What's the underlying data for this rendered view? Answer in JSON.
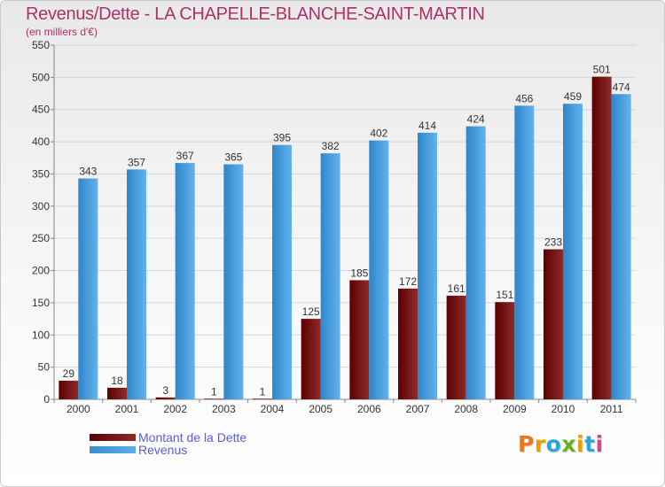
{
  "title": "Revenus/Dette - LA CHAPELLE-BLANCHE-SAINT-MARTIN",
  "subtitle": "(en milliers d'€)",
  "logo": {
    "text": "Proxiti",
    "colors": [
      "#e87722",
      "#e8a000",
      "#27a8d8",
      "#6ab023",
      "#e8a000",
      "#27a8d8",
      "#d04a8a"
    ]
  },
  "colors": {
    "debt_dark": "#5c0000",
    "debt_light": "#8e2b2b",
    "revenue_dark": "#2f86c8",
    "revenue_light": "#62b3ee",
    "title": "#b0306a",
    "legend": "#5a5ad8"
  },
  "legend": [
    {
      "label": "Montant de la Dette",
      "series": "debt"
    },
    {
      "label": "Revenus",
      "series": "revenue"
    }
  ],
  "chart_data": {
    "type": "bar",
    "title": "Revenus/Dette - LA CHAPELLE-BLANCHE-SAINT-MARTIN",
    "subtitle": "(en milliers d'€)",
    "categories": [
      "2000",
      "2001",
      "2002",
      "2003",
      "2004",
      "2005",
      "2006",
      "2007",
      "2008",
      "2009",
      "2010",
      "2011"
    ],
    "series": [
      {
        "name": "Montant de la Dette",
        "values": [
          29,
          18,
          3,
          1,
          1,
          125,
          185,
          172,
          161,
          151,
          233,
          501
        ]
      },
      {
        "name": "Revenus",
        "values": [
          343,
          357,
          367,
          365,
          395,
          382,
          402,
          414,
          424,
          456,
          459,
          474
        ]
      }
    ],
    "ylim": [
      0,
      550
    ],
    "yticks": [
      0,
      50,
      100,
      150,
      200,
      250,
      300,
      350,
      400,
      450,
      500,
      550
    ],
    "grid": true,
    "legend_position": "bottom-left"
  }
}
